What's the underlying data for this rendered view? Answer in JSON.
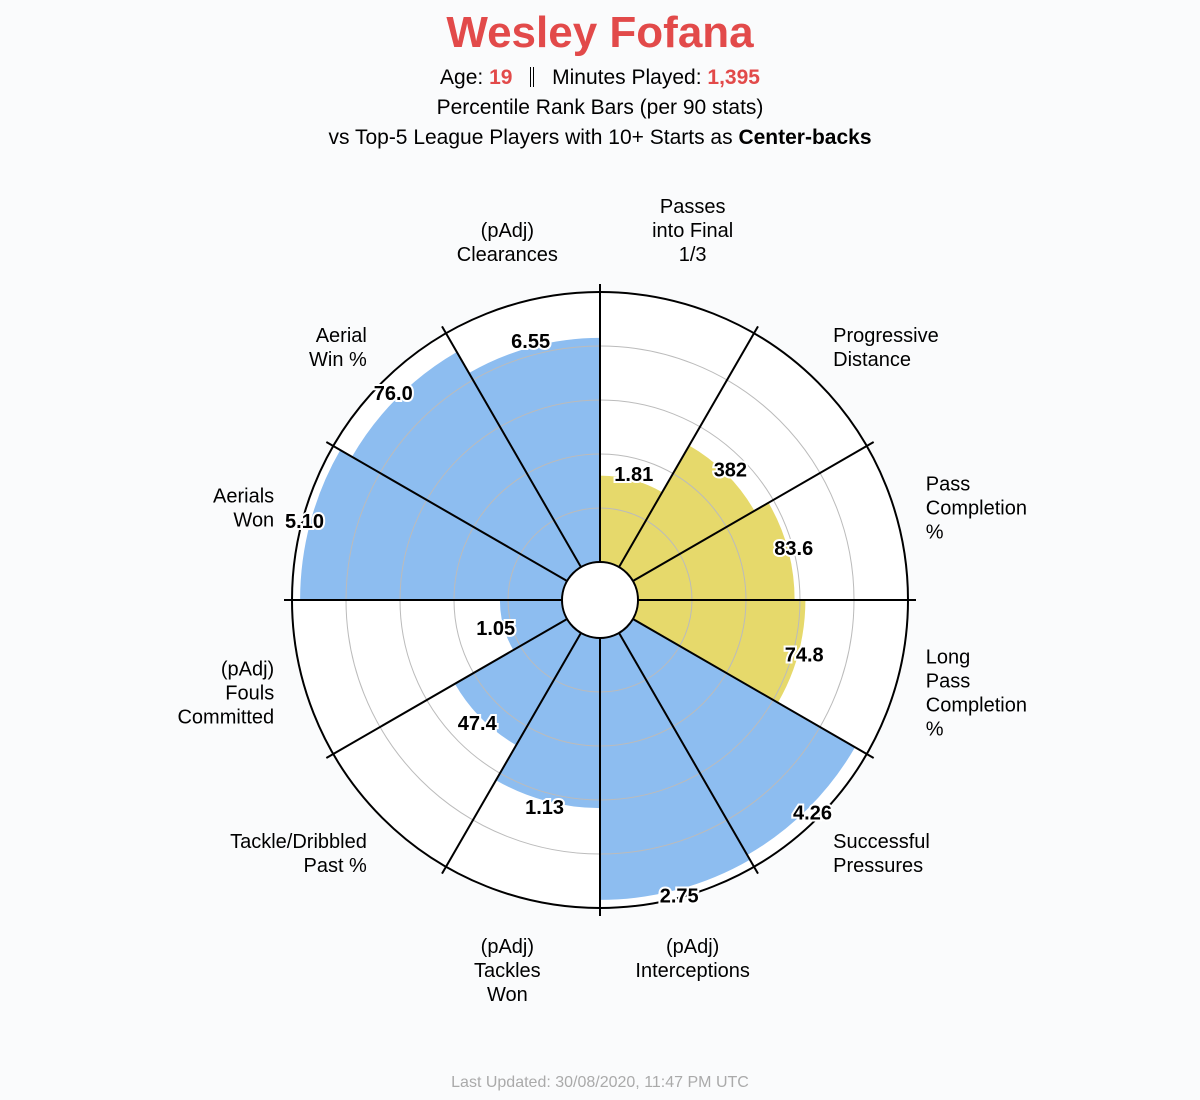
{
  "header": {
    "title": "Wesley Fofana",
    "age_label": "Age:",
    "age": "19",
    "minutes_label": "Minutes Played:",
    "minutes": "1,395",
    "subtitle": "Percentile Rank Bars (per 90 stats)",
    "comparison_prefix": "vs Top-5 League Players with 10+ Starts as",
    "position": "Center-backs"
  },
  "footer": "Last Updated: 30/08/2020, 11:47 PM UTC",
  "chart_data": {
    "type": "polar-bar",
    "rlim": [
      0,
      100
    ],
    "grid": true,
    "colors": {
      "passing": "#e6d96b",
      "defending": "#8dbdf0"
    },
    "categories": [
      {
        "label": [
          "Passes",
          "into Final",
          "1/3"
        ],
        "value": "1.81",
        "percentile": 32,
        "group": "passing"
      },
      {
        "label": [
          "Progressive",
          "Distance"
        ],
        "value": "382",
        "percentile": 52,
        "group": "passing"
      },
      {
        "label": [
          "Pass",
          "Completion",
          "%"
        ],
        "value": "83.6",
        "percentile": 58,
        "group": "passing"
      },
      {
        "label": [
          "Long",
          "Pass",
          "Completion",
          "%"
        ],
        "value": "74.8",
        "percentile": 62,
        "group": "passing"
      },
      {
        "label": [
          "Successful",
          "Pressures"
        ],
        "value": "4.26",
        "percentile": 95,
        "group": "defending"
      },
      {
        "label": [
          "(pAdj)",
          "Interceptions"
        ],
        "value": "2.75",
        "percentile": 97,
        "group": "defending"
      },
      {
        "label": [
          "(pAdj)",
          "Tackles",
          "Won"
        ],
        "value": "1.13",
        "percentile": 63,
        "group": "defending"
      },
      {
        "label": [
          "Tackle/Dribbled",
          "Past %"
        ],
        "value": "47.4",
        "percentile": 48,
        "group": "defending"
      },
      {
        "label": [
          "(pAdj)",
          "Fouls",
          "Committed"
        ],
        "value": "1.05",
        "percentile": 23,
        "group": "defending"
      },
      {
        "label": [
          "Aerials",
          "Won"
        ],
        "value": "5.10",
        "percentile": 97,
        "group": "defending"
      },
      {
        "label": [
          "Aerial",
          "Win %"
        ],
        "value": "76.0",
        "percentile": 92,
        "group": "defending"
      },
      {
        "label": [
          "(pAdj)",
          "Clearances"
        ],
        "value": "6.55",
        "percentile": 83,
        "group": "defending"
      }
    ]
  }
}
